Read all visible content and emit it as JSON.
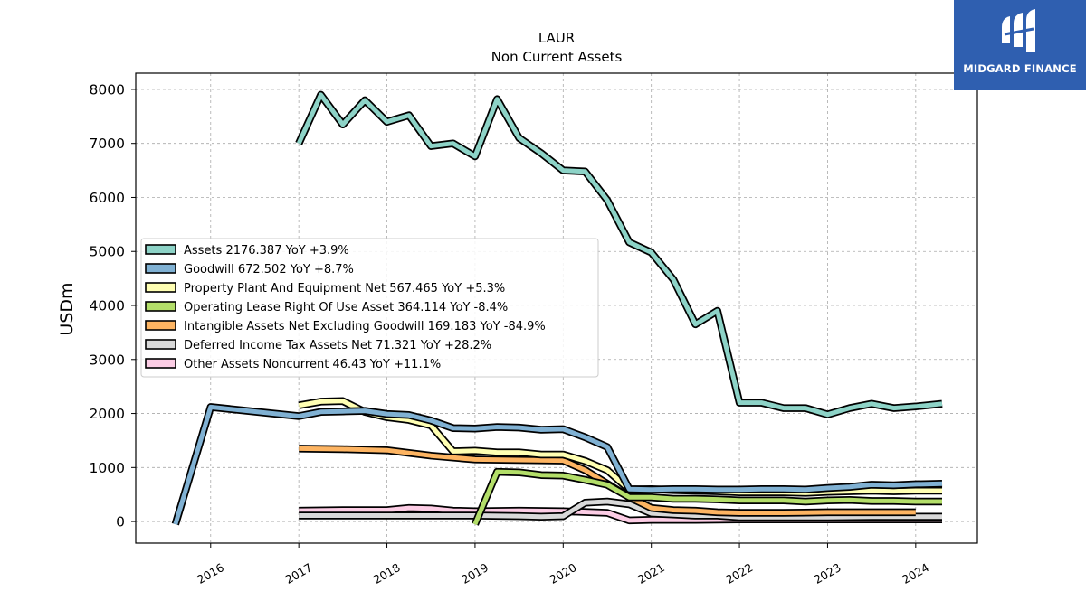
{
  "brand": {
    "name": "MIDGARD FINANCE",
    "bg_color": "#2f5fb0"
  },
  "chart_data": {
    "type": "line",
    "title": "LAUR",
    "subtitle": "Non Current  Assets",
    "ylabel": "USDm",
    "xlabel": "",
    "xlim": [
      2015.15,
      2024.7
    ],
    "ylim": [
      -400,
      8300
    ],
    "x_ticks": [
      2016,
      2017,
      2018,
      2019,
      2020,
      2021,
      2022,
      2023,
      2024
    ],
    "y_ticks": [
      0,
      1000,
      2000,
      3000,
      4000,
      5000,
      6000,
      7000,
      8000
    ],
    "grid": true,
    "legend_position": "center-left",
    "series": [
      {
        "name": "Assets",
        "legend": "Assets  2176.387 YoY +3.9%",
        "color": "#8dd3c7",
        "x": [
          2017.0,
          2017.25,
          2017.5,
          2017.75,
          2018.0,
          2018.25,
          2018.5,
          2018.75,
          2019.0,
          2019.25,
          2019.5,
          2019.75,
          2020.0,
          2020.25,
          2020.5,
          2020.75,
          2021.0,
          2021.25,
          2021.5,
          2021.75,
          2022.0,
          2022.25,
          2022.5,
          2022.75,
          2023.0,
          2023.25,
          2023.5,
          2023.75,
          2024.0,
          2024.3
        ],
        "y": [
          7000,
          7900,
          7350,
          7800,
          7400,
          7520,
          6950,
          7000,
          6760,
          7820,
          7100,
          6820,
          6500,
          6480,
          5950,
          5170,
          4980,
          4480,
          3650,
          3900,
          2200,
          2200,
          2100,
          2100,
          1980,
          2100,
          2180,
          2100,
          2130,
          2180
        ]
      },
      {
        "name": "Goodwill",
        "legend": "Goodwill  672.502 YoY +8.7%",
        "color": "#80b1d3",
        "x": [
          2015.6,
          2016.0,
          2017.0,
          2017.25,
          2017.5,
          2017.75,
          2018.0,
          2018.25,
          2018.5,
          2018.75,
          2019.0,
          2019.25,
          2019.5,
          2019.75,
          2020.0,
          2020.25,
          2020.5,
          2020.75,
          2021.0,
          2021.25,
          2021.5,
          2021.75,
          2022.0,
          2022.25,
          2022.5,
          2022.75,
          2023.0,
          2023.25,
          2023.5,
          2023.75,
          2024.0,
          2024.3
        ],
        "y": [
          -50,
          2120,
          1950,
          2030,
          2040,
          2050,
          1990,
          1970,
          1870,
          1730,
          1720,
          1750,
          1740,
          1700,
          1710,
          1560,
          1380,
          600,
          590,
          600,
          600,
          590,
          590,
          600,
          600,
          590,
          620,
          640,
          680,
          670,
          690,
          700
        ]
      },
      {
        "name": "Property Plant And Equipment Net",
        "legend": "Property Plant And Equipment Net  567.465 YoY +5.3%",
        "color": "#ffffb3",
        "x": [
          2017.0,
          2017.25,
          2017.5,
          2017.75,
          2018.0,
          2018.25,
          2018.5,
          2018.75,
          2019.0,
          2019.25,
          2019.5,
          2019.75,
          2020.0,
          2020.25,
          2020.5,
          2020.75,
          2021.0,
          2021.25,
          2021.5,
          2021.75,
          2022.0,
          2022.25,
          2022.5,
          2022.75,
          2023.0,
          2023.25,
          2023.5,
          2023.75,
          2024.0,
          2024.3
        ],
        "y": [
          2150,
          2220,
          2230,
          2030,
          1930,
          1880,
          1780,
          1300,
          1310,
          1280,
          1280,
          1240,
          1240,
          1120,
          950,
          590,
          600,
          580,
          570,
          560,
          540,
          540,
          540,
          530,
          550,
          560,
          570,
          560,
          570,
          570
        ]
      },
      {
        "name": "Operating Lease Right Of Use Asset",
        "legend": "Operating Lease Right Of Use Asset  364.114 YoY -8.4%",
        "color": "#b3de69",
        "x": [
          2019.0,
          2019.25,
          2019.5,
          2019.75,
          2020.0,
          2020.25,
          2020.5,
          2020.75,
          2021.0,
          2021.25,
          2021.5,
          2021.75,
          2022.0,
          2022.25,
          2022.5,
          2022.75,
          2023.0,
          2023.25,
          2023.5,
          2023.75,
          2024.0,
          2024.3
        ],
        "y": [
          -50,
          920,
          910,
          860,
          850,
          770,
          680,
          450,
          450,
          420,
          420,
          410,
          390,
          390,
          390,
          370,
          390,
          400,
          380,
          380,
          370,
          370
        ]
      },
      {
        "name": "Intangible Assets Net Excluding Goodwill",
        "legend": "Intangible Assets Net Excluding Goodwill  169.183 YoY -84.9%",
        "color": "#fdb462",
        "x": [
          2017.0,
          2017.5,
          2018.0,
          2018.5,
          2019.0,
          2019.5,
          2020.0,
          2020.25,
          2020.5,
          2020.75,
          2021.0,
          2021.25,
          2021.5,
          2021.75,
          2022.0,
          2022.5,
          2023.0,
          2023.5,
          2024.0
        ],
        "y": [
          1350,
          1340,
          1320,
          1220,
          1150,
          1140,
          1130,
          950,
          700,
          450,
          250,
          210,
          200,
          170,
          160,
          160,
          170,
          170,
          170
        ]
      },
      {
        "name": "Deferred Income Tax Assets Net",
        "legend": "Deferred Income Tax Assets Net  71.321 YoY +28.2%",
        "color": "#d9d9d9",
        "x": [
          2017.0,
          2017.5,
          2018.0,
          2018.5,
          2019.0,
          2019.5,
          2019.75,
          2020.0,
          2020.25,
          2020.5,
          2020.75,
          2021.0,
          2021.25,
          2021.5,
          2021.75,
          2022.0,
          2022.5,
          2023.0,
          2023.5,
          2024.0,
          2024.3
        ],
        "y": [
          110,
          110,
          110,
          110,
          110,
          100,
          90,
          100,
          350,
          370,
          320,
          150,
          130,
          110,
          110,
          80,
          80,
          80,
          90,
          90,
          90
        ]
      },
      {
        "name": "Other Assets Noncurrent",
        "legend": "Other Assets Noncurrent  46.43 YoY +11.1%",
        "color": "#fccde5",
        "x": [
          2017.0,
          2017.5,
          2018.0,
          2018.25,
          2018.5,
          2018.75,
          2019.0,
          2019.5,
          2020.0,
          2020.5,
          2020.75,
          2021.0,
          2021.5,
          2022.0,
          2022.5,
          2023.0,
          2023.5,
          2024.0,
          2024.3
        ],
        "y": [
          200,
          210,
          210,
          250,
          240,
          200,
          190,
          200,
          190,
          160,
          20,
          30,
          30,
          40,
          40,
          40,
          40,
          40,
          40
        ]
      }
    ]
  }
}
